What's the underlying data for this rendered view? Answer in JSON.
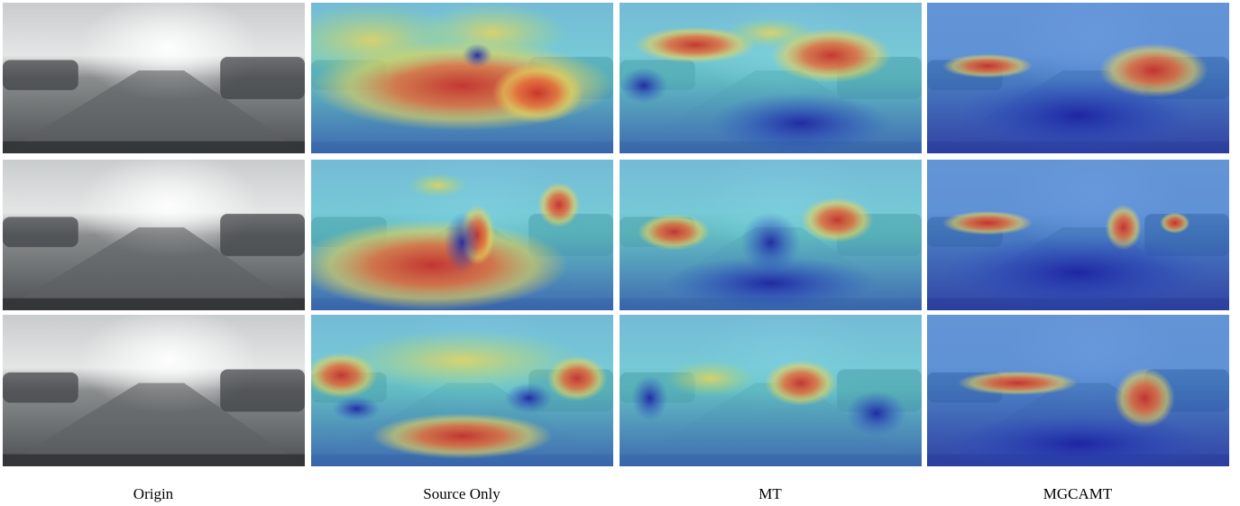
{
  "captions": [
    "Origin",
    "Source Only",
    "MT",
    "MGCAMT"
  ]
}
